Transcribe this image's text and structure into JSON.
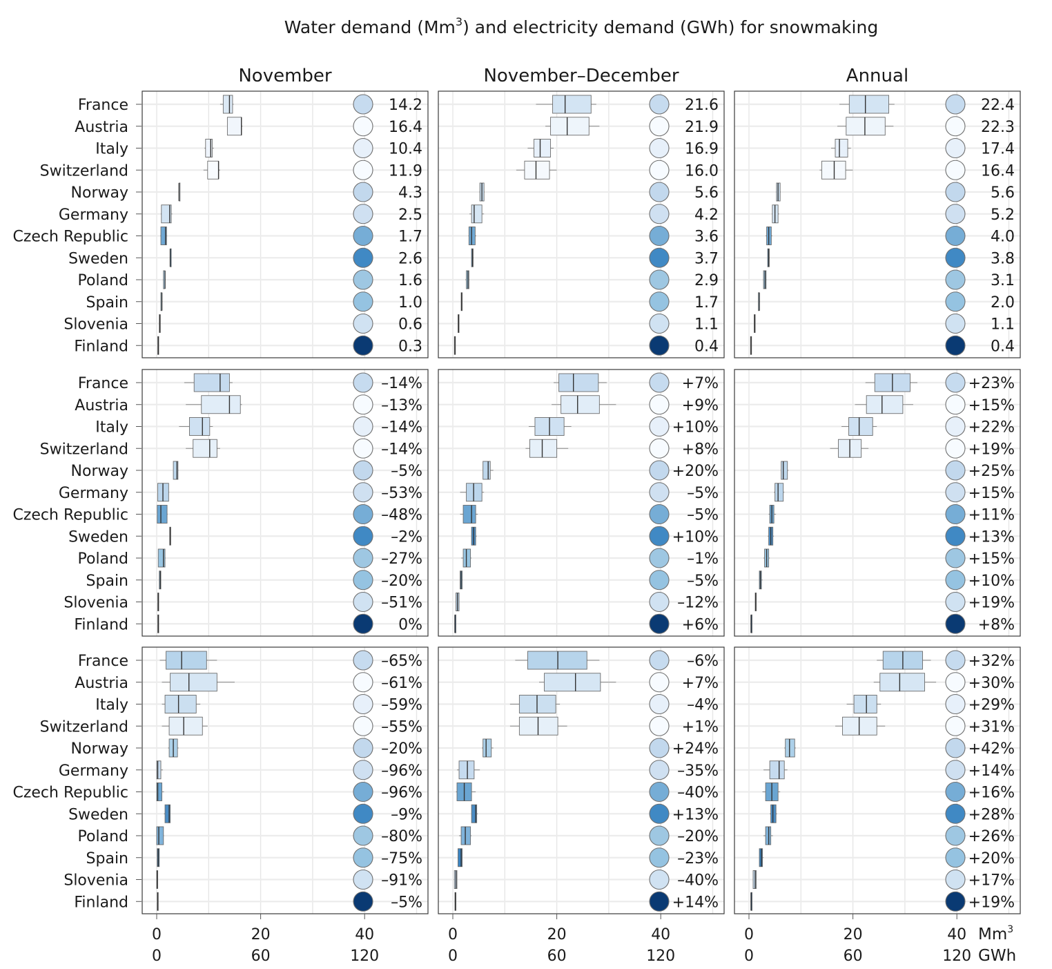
{
  "title": {
    "main": "Water demand (Mm",
    "sup": "3",
    "rest": ") and electricity demand (GWh) for snowmaking"
  },
  "columns": [
    "November",
    "November–December",
    "Annual"
  ],
  "countries": [
    "France",
    "Austria",
    "Italy",
    "Switzerland",
    "Norway",
    "Germany",
    "Czech Republic",
    "Sweden",
    "Poland",
    "Spain",
    "Slovenia",
    "Finland"
  ],
  "axis": {
    "mm3_ticks": [
      "0",
      "20",
      "40"
    ],
    "gwh_ticks": [
      "0",
      "60",
      "120"
    ],
    "mm3_unit": "Mm",
    "mm3_unit_sup": "3",
    "gwh_unit": "GWh"
  },
  "chart_data": {
    "type": "box",
    "x_range_mm3": [
      -3,
      52
    ],
    "dot_colors": [
      "#c6dbef",
      "#f7fbff",
      "#e7f0fa",
      "#f7fbff",
      "#c2d8ed",
      "#cfe0f1",
      "#76add6",
      "#4089c4",
      "#9ec7e2",
      "#95c3e1",
      "#d0e2f2",
      "#0a3a73"
    ],
    "panels": [
      {
        "row": 0,
        "col": 0,
        "labels": [
          "14.2",
          "16.4",
          "10.4",
          "11.9",
          "4.3",
          "2.5",
          "1.7",
          "2.6",
          "1.6",
          "1.0",
          "0.6",
          "0.3"
        ],
        "box_colors": [
          "#dce9f5",
          "#f1f6fc",
          "#eef4fb",
          "#f8fbfe",
          "#dce9f5",
          "#d3e4f3",
          "#6fa8d4",
          "#4a8cc4",
          "#a7cce6",
          "#9cc6e3",
          "#d6e6f4",
          "#0e3d75"
        ],
        "boxes": [
          [
            12.2,
            12.8,
            14.0,
            14.6,
            14.8
          ],
          [
            13.6,
            13.6,
            16.3,
            16.3,
            16.5
          ],
          [
            9.2,
            9.4,
            10.4,
            10.7,
            11.0
          ],
          [
            9.0,
            9.8,
            11.9,
            11.9,
            12.2
          ],
          [
            4.3,
            4.3,
            4.3,
            4.3,
            4.3
          ],
          [
            0.8,
            0.9,
            2.5,
            2.8,
            3.0
          ],
          [
            0.7,
            0.8,
            1.7,
            1.9,
            2.0
          ],
          [
            2.6,
            2.6,
            2.6,
            2.6,
            2.6
          ],
          [
            1.2,
            1.3,
            1.6,
            1.6,
            1.7
          ],
          [
            0.8,
            0.8,
            1.0,
            1.0,
            1.1
          ],
          [
            0.5,
            0.5,
            0.6,
            0.6,
            0.6
          ],
          [
            0.2,
            0.2,
            0.3,
            0.3,
            0.3
          ]
        ]
      },
      {
        "row": 0,
        "col": 1,
        "labels": [
          "21.6",
          "21.9",
          "16.9",
          "16.0",
          "5.6",
          "4.2",
          "3.6",
          "3.7",
          "2.9",
          "1.7",
          "1.1",
          "0.4"
        ],
        "box_colors": [
          "#d3e4f3",
          "#eef5fb",
          "#e7f0fa",
          "#f5f9fd",
          "#c9deef",
          "#d6e6f4",
          "#6fa8d4",
          "#4a8cc4",
          "#9cc6e3",
          "#9cc6e3",
          "#d6e6f4",
          "#0e3d75"
        ],
        "boxes": [
          [
            16.0,
            19.2,
            21.6,
            26.6,
            27.6
          ],
          [
            17.8,
            18.8,
            22.0,
            26.2,
            28.2
          ],
          [
            14.4,
            15.6,
            16.8,
            18.8,
            19.4
          ],
          [
            12.2,
            13.8,
            16.0,
            18.6,
            20.0
          ],
          [
            5.1,
            5.2,
            5.6,
            6.0,
            6.1
          ],
          [
            3.2,
            3.6,
            4.1,
            5.6,
            6.0
          ],
          [
            3.0,
            3.1,
            3.6,
            4.3,
            4.5
          ],
          [
            3.6,
            3.6,
            3.8,
            3.9,
            4.0
          ],
          [
            2.4,
            2.6,
            2.9,
            3.1,
            3.2
          ],
          [
            1.6,
            1.6,
            1.7,
            1.8,
            1.8
          ],
          [
            1.0,
            1.0,
            1.1,
            1.1,
            1.1
          ],
          [
            0.3,
            0.3,
            0.4,
            0.4,
            0.4
          ]
        ]
      },
      {
        "row": 0,
        "col": 2,
        "labels": [
          "22.4",
          "22.3",
          "17.4",
          "16.4",
          "5.6",
          "5.2",
          "4.0",
          "3.8",
          "3.1",
          "2.0",
          "1.1",
          "0.4"
        ],
        "box_colors": [
          "#d3e4f3",
          "#eef5fb",
          "#e7f0fa",
          "#f5f9fd",
          "#c9deef",
          "#d6e6f4",
          "#6fa8d4",
          "#4a8cc4",
          "#9cc6e3",
          "#9cc6e3",
          "#d6e6f4",
          "#0e3d75"
        ],
        "boxes": [
          [
            17.4,
            19.3,
            22.4,
            26.9,
            28.0
          ],
          [
            17.0,
            18.7,
            22.3,
            26.2,
            27.8
          ],
          [
            15.8,
            16.6,
            17.4,
            19.0,
            19.6
          ],
          [
            13.6,
            14.0,
            16.4,
            18.6,
            20.0
          ],
          [
            5.2,
            5.3,
            5.6,
            6.0,
            6.1
          ],
          [
            4.4,
            4.5,
            5.0,
            5.6,
            5.8
          ],
          [
            3.2,
            3.4,
            3.8,
            4.3,
            4.5
          ],
          [
            3.6,
            3.6,
            3.8,
            3.9,
            4.0
          ],
          [
            2.7,
            2.8,
            3.1,
            3.3,
            3.4
          ],
          [
            1.8,
            1.8,
            2.0,
            2.0,
            2.1
          ],
          [
            1.0,
            1.0,
            1.1,
            1.1,
            1.1
          ],
          [
            0.3,
            0.3,
            0.4,
            0.4,
            0.4
          ]
        ]
      },
      {
        "row": 1,
        "col": 0,
        "labels": [
          "–14%",
          "–13%",
          "–14%",
          "–14%",
          "–5%",
          "–53%",
          "–48%",
          "–2%",
          "–27%",
          "–20%",
          "–51%",
          "0%"
        ],
        "box_colors": [
          "#c6dbef",
          "#e1edf8",
          "#cfe1f2",
          "#e6f0f9",
          "#bfd8ed",
          "#bcd6ec",
          "#6aa5d2",
          "#4a8cc4",
          "#98c5e2",
          "#6aa5d2",
          "#bfd8ed",
          "#0e3d75"
        ],
        "boxes": [
          [
            5.3,
            7.2,
            12.2,
            14.0,
            14.6
          ],
          [
            5.6,
            8.6,
            14.0,
            16.1,
            16.4
          ],
          [
            4.3,
            6.3,
            8.8,
            10.2,
            10.8
          ],
          [
            5.6,
            7.0,
            10.2,
            11.6,
            12.2
          ],
          [
            3.2,
            3.2,
            3.9,
            4.1,
            4.2
          ],
          [
            0.2,
            0.2,
            1.2,
            2.3,
            2.4
          ],
          [
            0.1,
            0.1,
            0.8,
            2.0,
            2.1
          ],
          [
            2.5,
            2.5,
            2.6,
            2.6,
            2.6
          ],
          [
            0.3,
            0.3,
            1.3,
            1.6,
            1.7
          ],
          [
            0.5,
            0.5,
            0.7,
            0.8,
            0.8
          ],
          [
            0.2,
            0.2,
            0.3,
            0.4,
            0.4
          ],
          [
            0.2,
            0.2,
            0.3,
            0.3,
            0.3
          ]
        ]
      },
      {
        "row": 1,
        "col": 1,
        "labels": [
          "+7%",
          "+9%",
          "+10%",
          "+8%",
          "+20%",
          "–5%",
          "–5%",
          "+10%",
          "–1%",
          "–5%",
          "–12%",
          "+6%"
        ],
        "box_colors": [
          "#c6dbef",
          "#e1edf8",
          "#cfe1f2",
          "#e6f0f9",
          "#bfd8ed",
          "#bcd6ec",
          "#6aa5d2",
          "#4a8cc4",
          "#98c5e2",
          "#6aa5d2",
          "#bfd8ed",
          "#0e3d75"
        ],
        "boxes": [
          [
            19.4,
            20.4,
            23.2,
            28.0,
            29.6
          ],
          [
            19.0,
            20.8,
            24.0,
            28.2,
            31.4
          ],
          [
            14.6,
            15.8,
            18.6,
            21.4,
            22.8
          ],
          [
            14.0,
            14.8,
            17.2,
            20.0,
            22.2
          ],
          [
            5.8,
            5.8,
            6.8,
            7.2,
            7.8
          ],
          [
            1.4,
            2.6,
            4.0,
            5.6,
            6.0
          ],
          [
            1.4,
            2.0,
            3.6,
            4.4,
            4.8
          ],
          [
            3.6,
            3.6,
            4.0,
            4.4,
            4.6
          ],
          [
            1.6,
            2.0,
            2.6,
            3.4,
            3.6
          ],
          [
            1.4,
            1.4,
            1.6,
            1.8,
            1.9
          ],
          [
            0.6,
            0.6,
            0.9,
            1.2,
            1.2
          ],
          [
            0.4,
            0.4,
            0.4,
            0.5,
            0.5
          ]
        ]
      },
      {
        "row": 1,
        "col": 2,
        "labels": [
          "+23%",
          "+15%",
          "+22%",
          "+19%",
          "+25%",
          "+15%",
          "+11%",
          "+13%",
          "+15%",
          "+10%",
          "+19%",
          "+8%"
        ],
        "box_colors": [
          "#c6dbef",
          "#e1edf8",
          "#cfe1f2",
          "#e6f0f9",
          "#bfd8ed",
          "#bcd6ec",
          "#6aa5d2",
          "#4a8cc4",
          "#98c5e2",
          "#6aa5d2",
          "#bfd8ed",
          "#0e3d75"
        ],
        "boxes": [
          [
            22.4,
            24.2,
            27.6,
            31.0,
            32.4
          ],
          [
            20.4,
            22.6,
            25.6,
            29.6,
            31.6
          ],
          [
            17.8,
            19.2,
            21.2,
            23.8,
            24.6
          ],
          [
            15.6,
            17.2,
            19.4,
            21.6,
            23.0
          ],
          [
            6.2,
            6.2,
            6.6,
            7.4,
            7.6
          ],
          [
            4.8,
            5.0,
            5.6,
            6.6,
            6.8
          ],
          [
            3.8,
            4.0,
            4.4,
            4.8,
            5.2
          ],
          [
            3.6,
            3.8,
            4.2,
            4.6,
            4.8
          ],
          [
            2.8,
            3.0,
            3.4,
            3.8,
            4.0
          ],
          [
            2.0,
            2.0,
            2.2,
            2.4,
            2.6
          ],
          [
            1.2,
            1.2,
            1.3,
            1.4,
            1.4
          ],
          [
            0.4,
            0.4,
            0.4,
            0.5,
            0.5
          ]
        ]
      },
      {
        "row": 2,
        "col": 0,
        "labels": [
          "–65%",
          "–61%",
          "–59%",
          "–55%",
          "–20%",
          "–96%",
          "–96%",
          "–9%",
          "–80%",
          "–75%",
          "–91%",
          "–5%"
        ],
        "box_colors": [
          "#b7d4eb",
          "#d6e6f4",
          "#cbdff0",
          "#e6f0f9",
          "#acd0e9",
          "#c6dbef",
          "#6aa5d2",
          "#4a8cc4",
          "#7fb3db",
          "#3a84c1",
          "#c6dbef",
          "#0e3d75"
        ],
        "boxes": [
          [
            0.6,
            1.8,
            4.8,
            9.6,
            11.6
          ],
          [
            1.0,
            2.6,
            6.2,
            11.6,
            15.0
          ],
          [
            1.0,
            1.6,
            4.2,
            7.6,
            8.4
          ],
          [
            1.0,
            2.4,
            5.2,
            8.8,
            9.8
          ],
          [
            2.2,
            2.4,
            3.2,
            4.0,
            4.2
          ],
          [
            0.0,
            0.0,
            0.2,
            0.8,
            1.2
          ],
          [
            0.0,
            0.0,
            0.2,
            1.0,
            1.4
          ],
          [
            1.4,
            1.6,
            2.4,
            2.6,
            2.6
          ],
          [
            0.0,
            0.0,
            0.4,
            1.3,
            1.4
          ],
          [
            0.1,
            0.1,
            0.3,
            0.5,
            0.5
          ],
          [
            0.0,
            0.0,
            0.1,
            0.2,
            0.2
          ],
          [
            0.1,
            0.1,
            0.2,
            0.3,
            0.3
          ]
        ]
      },
      {
        "row": 2,
        "col": 1,
        "labels": [
          "–6%",
          "+7%",
          "–4%",
          "+1%",
          "+24%",
          "–35%",
          "–40%",
          "+13%",
          "–20%",
          "–23%",
          "–40%",
          "+14%"
        ],
        "box_colors": [
          "#b7d4eb",
          "#d6e6f4",
          "#cbdff0",
          "#e6f0f9",
          "#acd0e9",
          "#c6dbef",
          "#6aa5d2",
          "#4a8cc4",
          "#7fb3db",
          "#3a84c1",
          "#c6dbef",
          "#0e3d75"
        ],
        "boxes": [
          [
            12.0,
            14.4,
            20.2,
            25.8,
            28.2
          ],
          [
            16.6,
            17.6,
            23.6,
            28.4,
            31.4
          ],
          [
            11.0,
            12.8,
            16.2,
            19.8,
            20.6
          ],
          [
            11.0,
            12.8,
            16.4,
            20.2,
            22.0
          ],
          [
            5.6,
            5.8,
            6.4,
            7.4,
            7.8
          ],
          [
            0.8,
            1.2,
            2.8,
            4.1,
            5.2
          ],
          [
            0.6,
            0.8,
            2.2,
            3.6,
            4.4
          ],
          [
            3.6,
            3.6,
            4.4,
            4.6,
            4.8
          ],
          [
            1.2,
            1.6,
            2.4,
            3.4,
            3.6
          ],
          [
            1.0,
            1.0,
            1.6,
            1.8,
            1.8
          ],
          [
            0.2,
            0.3,
            0.6,
            0.8,
            0.8
          ],
          [
            0.4,
            0.4,
            0.5,
            0.6,
            0.6
          ]
        ]
      },
      {
        "row": 2,
        "col": 2,
        "labels": [
          "+32%",
          "+30%",
          "+29%",
          "+31%",
          "+42%",
          "+14%",
          "+16%",
          "+28%",
          "+26%",
          "+20%",
          "+17%",
          "+19%"
        ],
        "box_colors": [
          "#b7d4eb",
          "#d6e6f4",
          "#cbdff0",
          "#e6f0f9",
          "#acd0e9",
          "#c6dbef",
          "#6aa5d2",
          "#4a8cc4",
          "#7fb3db",
          "#3a84c1",
          "#c6dbef",
          "#0e3d75"
        ],
        "boxes": [
          [
            24.6,
            25.8,
            29.6,
            33.4,
            35.0
          ],
          [
            24.0,
            25.2,
            29.0,
            33.8,
            36.0
          ],
          [
            18.8,
            20.2,
            22.6,
            24.6,
            25.4
          ],
          [
            16.6,
            18.0,
            21.2,
            24.6,
            26.2
          ],
          [
            6.8,
            7.0,
            7.8,
            8.8,
            9.0
          ],
          [
            2.8,
            4.0,
            5.8,
            6.8,
            7.4
          ],
          [
            2.6,
            3.2,
            4.4,
            5.6,
            6.0
          ],
          [
            4.0,
            4.2,
            4.6,
            5.2,
            5.4
          ],
          [
            2.8,
            3.2,
            3.8,
            4.2,
            4.6
          ],
          [
            2.0,
            2.0,
            2.4,
            2.6,
            2.8
          ],
          [
            0.8,
            0.8,
            1.2,
            1.4,
            1.4
          ],
          [
            0.4,
            0.4,
            0.4,
            0.5,
            0.5
          ]
        ]
      }
    ]
  }
}
